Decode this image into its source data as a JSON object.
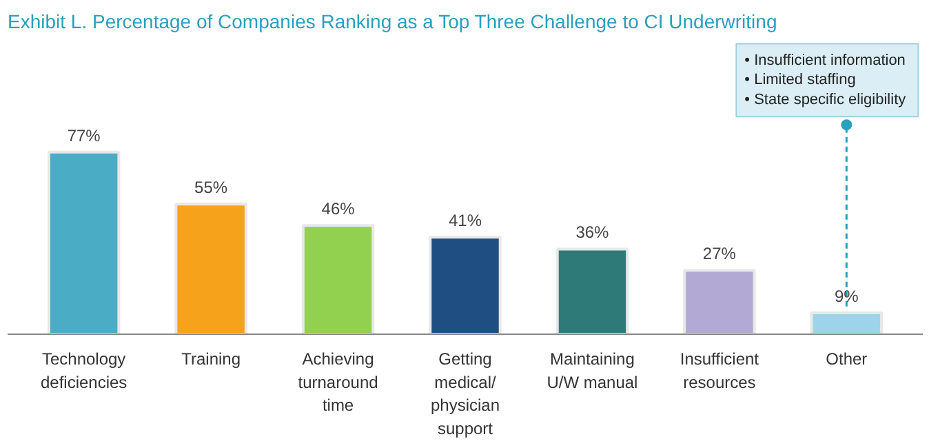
{
  "chart_data": {
    "type": "bar",
    "title": "Exhibit L. Percentage of Companies Ranking as a Top Three Challenge to CI Underwriting",
    "categories": [
      "Technology\ndeficiencies",
      "Training",
      "Achieving\nturnaround\ntime",
      "Getting\nmedical/\nphysician\nsupport",
      "Maintaining\nU/W manual",
      "Insufficient\nresources",
      "Other"
    ],
    "values": [
      77,
      55,
      46,
      41,
      36,
      27,
      9
    ],
    "colors": [
      "#4bacc6",
      "#f7a21b",
      "#92d050",
      "#1f4e82",
      "#2e7a78",
      "#b3a9d5",
      "#9dd4ea"
    ],
    "value_labels": [
      "77%",
      "55%",
      "46%",
      "41%",
      "36%",
      "27%",
      "9%"
    ],
    "annotations": [
      {
        "text": "•  Insufficient information\n•  Limited staffing\n•  State specific eligibility",
        "x": "Other",
        "y": 9
      }
    ],
    "grid": false
  }
}
